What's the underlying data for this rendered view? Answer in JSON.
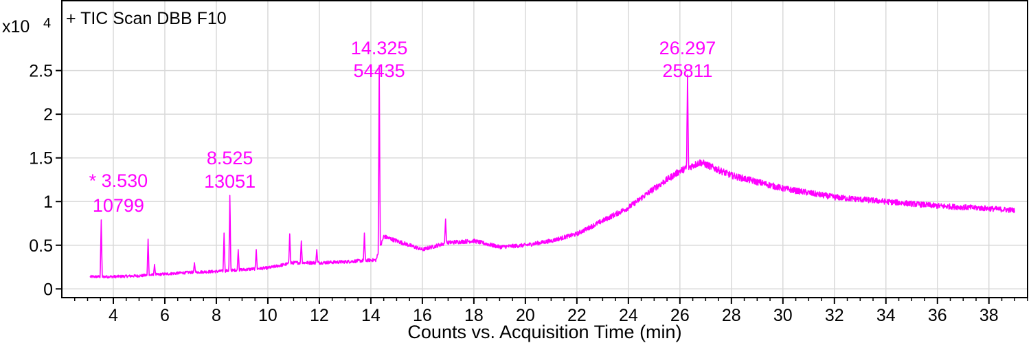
{
  "chart_data": {
    "type": "line",
    "title": "+ TIC Scan DBB F10",
    "xlabel": "Counts vs. Acquisition Time (min)",
    "ylabel": "",
    "y_multiplier": "x10",
    "y_exponent": "4",
    "xlim": [
      2.0,
      39.5
    ],
    "ylim": [
      -0.1,
      3.3
    ],
    "x_ticks": [
      4,
      6,
      8,
      10,
      12,
      14,
      16,
      18,
      20,
      22,
      24,
      26,
      28,
      30,
      32,
      34,
      36,
      38
    ],
    "y_ticks": [
      0,
      0.5,
      1,
      1.5,
      2,
      2.5
    ],
    "y_tick_labels": [
      "0",
      "0.5",
      "1",
      "1.5",
      "2",
      "2.5"
    ],
    "grid": true,
    "series_color": "#ff00ff",
    "baseline": [
      [
        3.1,
        0.14
      ],
      [
        4.0,
        0.14
      ],
      [
        5.0,
        0.15
      ],
      [
        6.0,
        0.17
      ],
      [
        7.0,
        0.19
      ],
      [
        8.0,
        0.2
      ],
      [
        9.0,
        0.22
      ],
      [
        10.0,
        0.24
      ],
      [
        11.0,
        0.3
      ],
      [
        12.0,
        0.3
      ],
      [
        13.0,
        0.31
      ],
      [
        14.0,
        0.33
      ],
      [
        14.2,
        0.33
      ],
      [
        14.5,
        0.6
      ],
      [
        15.0,
        0.55
      ],
      [
        16.0,
        0.45
      ],
      [
        17.0,
        0.53
      ],
      [
        18.0,
        0.55
      ],
      [
        19.0,
        0.48
      ],
      [
        20.0,
        0.5
      ],
      [
        21.0,
        0.55
      ],
      [
        22.0,
        0.63
      ],
      [
        23.0,
        0.78
      ],
      [
        24.0,
        0.93
      ],
      [
        25.0,
        1.15
      ],
      [
        26.0,
        1.35
      ],
      [
        26.8,
        1.45
      ],
      [
        28.0,
        1.3
      ],
      [
        30.0,
        1.15
      ],
      [
        32.0,
        1.05
      ],
      [
        34.0,
        1.0
      ],
      [
        36.0,
        0.95
      ],
      [
        38.0,
        0.92
      ],
      [
        39.0,
        0.9
      ]
    ],
    "spikes": [
      [
        3.53,
        0.79
      ],
      [
        5.35,
        0.57
      ],
      [
        5.6,
        0.28
      ],
      [
        7.15,
        0.3
      ],
      [
        8.3,
        0.64
      ],
      [
        8.525,
        1.07
      ],
      [
        8.85,
        0.45
      ],
      [
        9.55,
        0.45
      ],
      [
        10.85,
        0.63
      ],
      [
        11.3,
        0.55
      ],
      [
        11.9,
        0.45
      ],
      [
        13.75,
        0.64
      ],
      [
        14.325,
        2.56
      ],
      [
        16.9,
        0.8
      ],
      [
        26.297,
        2.45
      ]
    ],
    "annotations": [
      {
        "x": 3.53,
        "top": "* 3.530",
        "bottom": "10799"
      },
      {
        "x": 8.525,
        "top": "8.525",
        "bottom": "13051"
      },
      {
        "x": 14.325,
        "top": "14.325",
        "bottom": "54435"
      },
      {
        "x": 26.297,
        "top": "26.297",
        "bottom": "25811"
      }
    ]
  }
}
